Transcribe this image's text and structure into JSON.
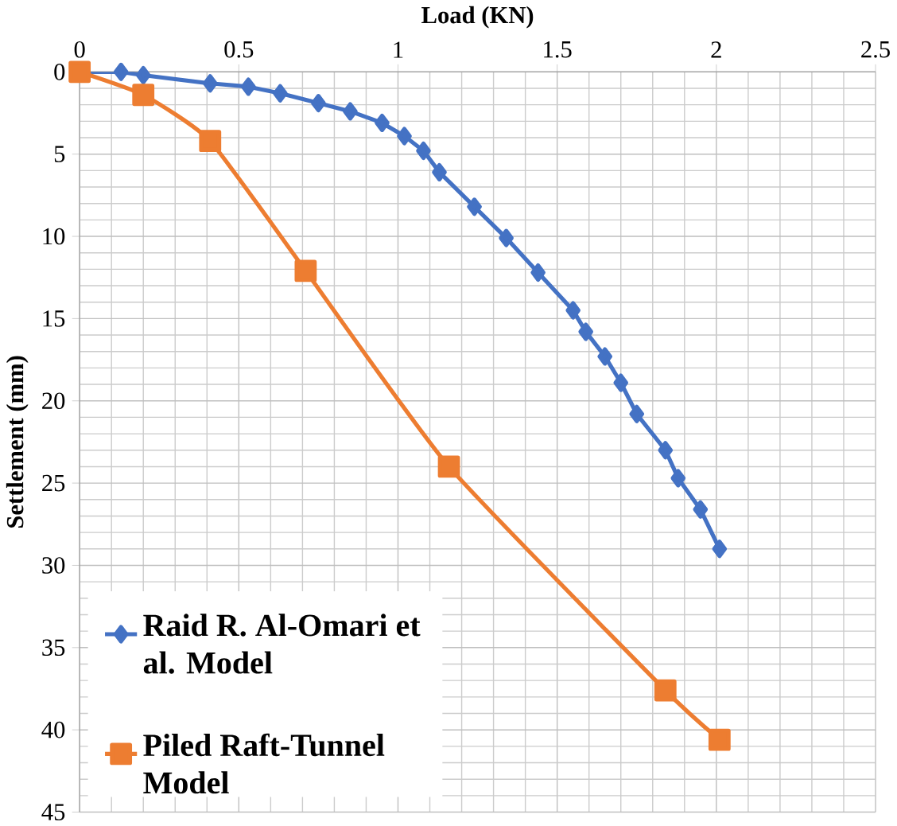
{
  "chart_data": {
    "type": "line",
    "xlabel": "Load (KN)",
    "ylabel": "Settlement (mm)",
    "xlim": [
      0,
      2.5
    ],
    "xticks": [
      0,
      0.5,
      1,
      1.5,
      2,
      2.5
    ],
    "ylim": [
      45,
      0
    ],
    "yticks": [
      0,
      5,
      10,
      15,
      20,
      25,
      30,
      35,
      40,
      45
    ],
    "grid": true,
    "legend": "bottom left",
    "line_style": "solid",
    "series": [
      {
        "name": "Raid R. Al-Omari et al. Model",
        "color": "#4472c4",
        "marker": "diamond",
        "x": [
          0,
          0.13,
          0.2,
          0.41,
          0.53,
          0.63,
          0.75,
          0.85,
          0.95,
          1.02,
          1.08,
          1.13,
          1.24,
          1.34,
          1.44,
          1.55,
          1.59,
          1.65,
          1.7,
          1.75,
          1.84,
          1.88,
          1.95,
          2.01
        ],
        "values": [
          0,
          0,
          0.2,
          0.7,
          0.9,
          1.3,
          1.9,
          2.4,
          3.1,
          3.9,
          4.8,
          6.1,
          8.2,
          10.1,
          12.2,
          14.5,
          15.8,
          17.3,
          18.9,
          20.8,
          23.0,
          24.7,
          26.6,
          29.0
        ]
      },
      {
        "name": "Piled Raft-Tunnel Model",
        "color": "#ed7d31",
        "marker": "square",
        "x": [
          0,
          0.2,
          0.41,
          0.71,
          1.16,
          1.84,
          2.01
        ],
        "values": [
          0,
          1.4,
          4.2,
          12.1,
          24.0,
          37.6,
          40.6
        ]
      }
    ]
  }
}
